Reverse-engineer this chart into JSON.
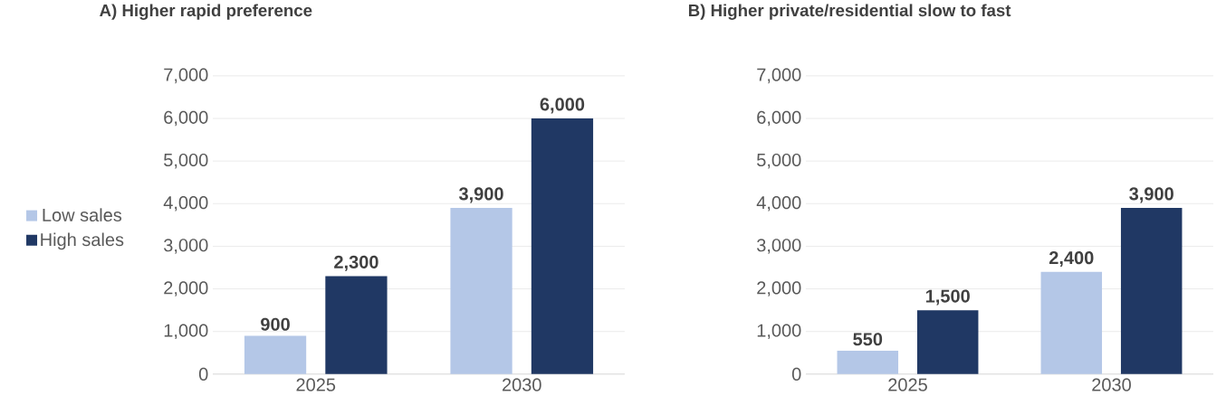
{
  "chart_data": [
    {
      "type": "bar",
      "title": "A) Higher rapid preference",
      "categories": [
        "2025",
        "2030"
      ],
      "series": [
        {
          "name": "Low sales",
          "color": "#b4c7e7",
          "values": [
            900,
            3900
          ],
          "value_labels": [
            "900",
            "3,900"
          ]
        },
        {
          "name": "High sales",
          "color": "#203864",
          "values": [
            2300,
            6000
          ],
          "value_labels": [
            "2,300",
            "6,000"
          ]
        }
      ],
      "ylim": [
        0,
        7000
      ],
      "yticks": [
        0,
        {
          "value": 1000,
          "label": "1,000"
        },
        {
          "value": 2000,
          "label": "2,000"
        },
        {
          "value": 3000,
          "label": "3,000"
        },
        {
          "value": 4000,
          "label": "4,000"
        },
        {
          "value": 5000,
          "label": "5,000"
        },
        {
          "value": 6000,
          "label": "6,000"
        },
        {
          "value": 7000,
          "label": "7,000"
        }
      ],
      "grid": "y",
      "legend": "left"
    },
    {
      "type": "bar",
      "title": "B) Higher private/residential slow to fast",
      "categories": [
        "2025",
        "2030"
      ],
      "series": [
        {
          "color": "#b4c7e7",
          "values": [
            550,
            2400
          ],
          "value_labels": [
            "550",
            "2,400"
          ]
        },
        {
          "color": "#203864",
          "values": [
            1500,
            3900
          ],
          "value_labels": [
            "1,500",
            "3,900"
          ]
        }
      ],
      "ylim": [
        0,
        7000
      ],
      "yticks": [
        0,
        {
          "value": 1000,
          "label": "1,000"
        },
        {
          "value": 2000,
          "label": "2,000"
        },
        {
          "value": 3000,
          "label": "3,000"
        },
        {
          "value": 4000,
          "label": "4,000"
        },
        {
          "value": 5000,
          "label": "5,000"
        },
        {
          "value": 6000,
          "label": "6,000"
        },
        {
          "value": 7000,
          "label": "7,000"
        }
      ],
      "grid": "y"
    }
  ]
}
